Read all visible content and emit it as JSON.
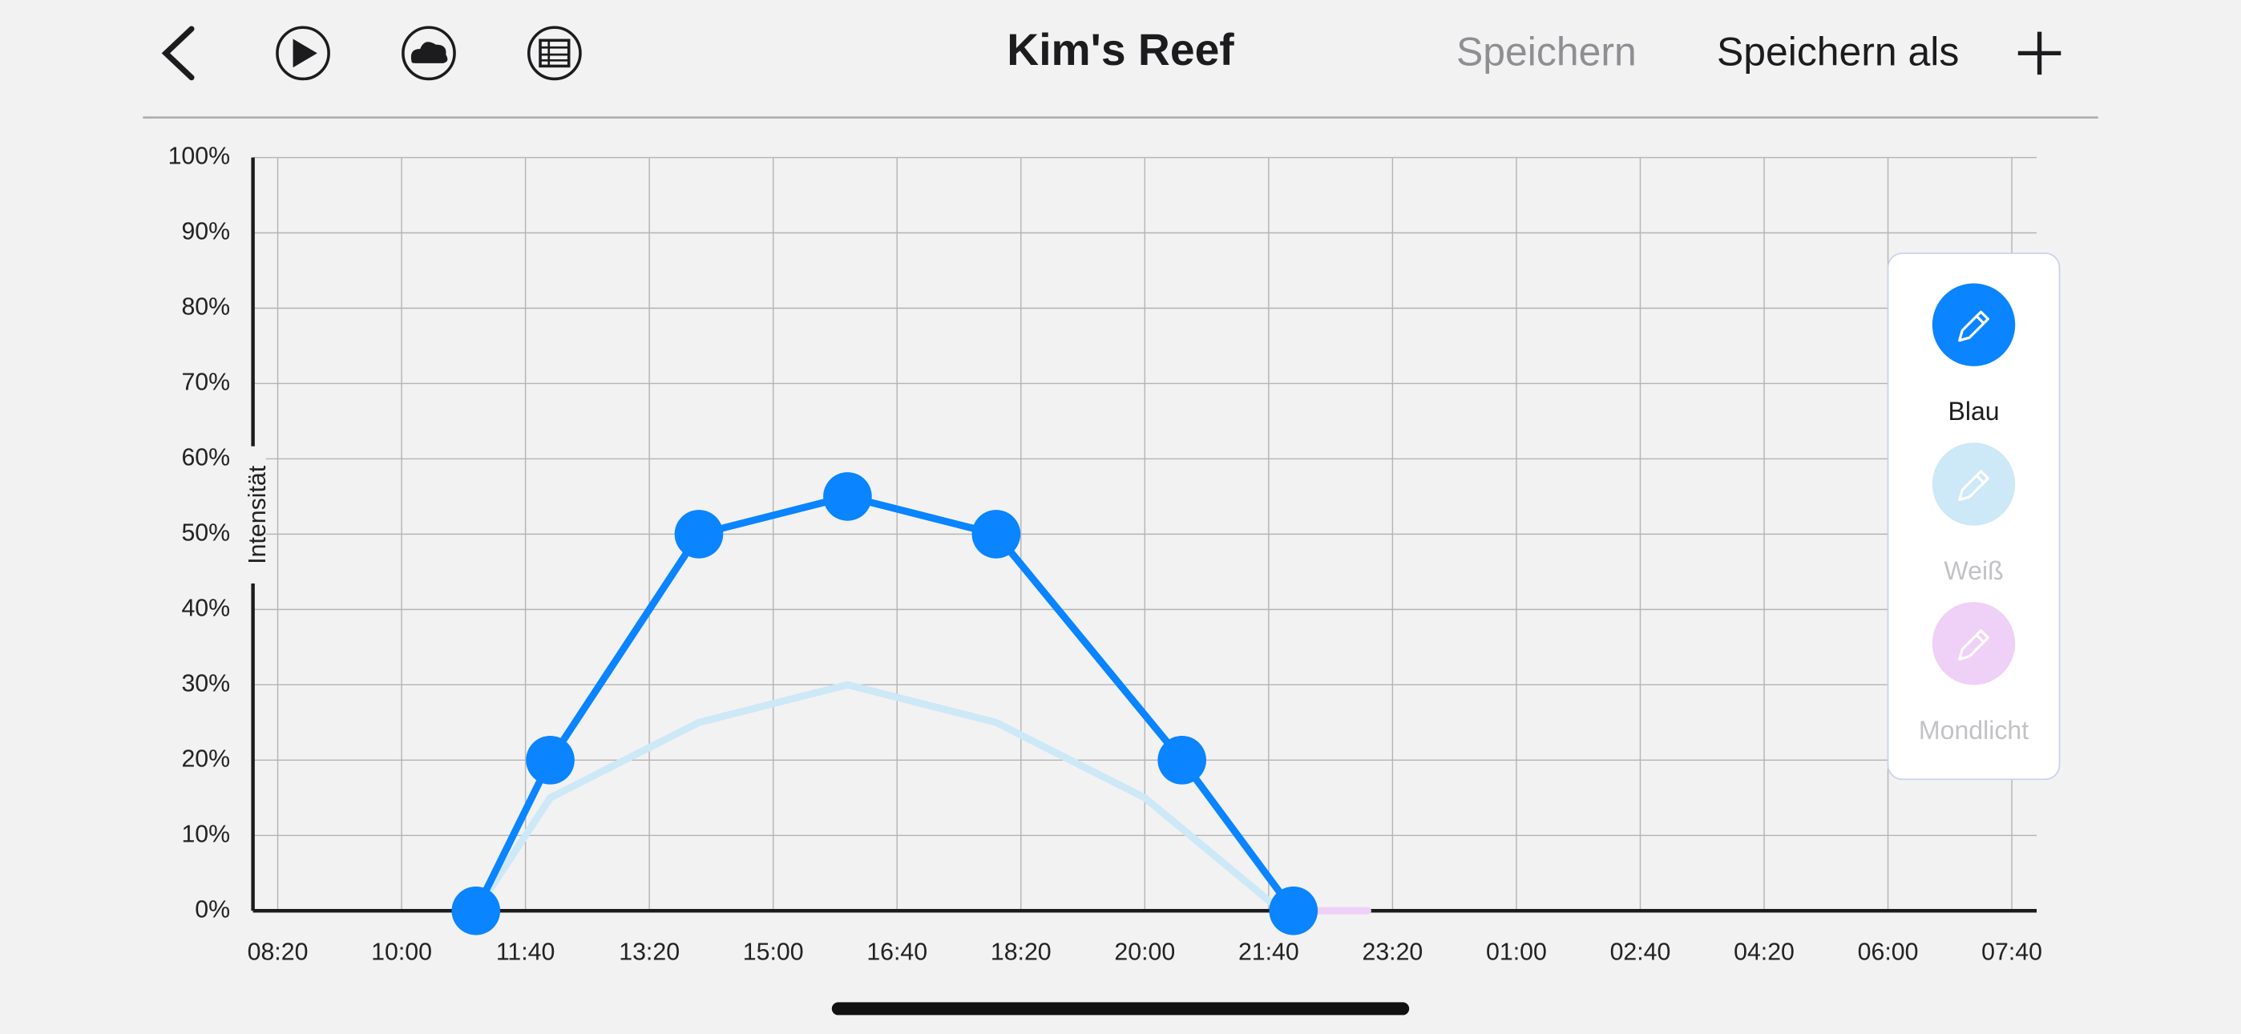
{
  "header": {
    "title": "Kim's Reef",
    "save": "Speichern",
    "save_as": "Speichern als"
  },
  "chart_data": {
    "type": "line",
    "y_label": "Intensität",
    "xlim": [
      480,
      1920
    ],
    "xticks": [
      {
        "value": 500,
        "label": "08:20"
      },
      {
        "value": 600,
        "label": "10:00"
      },
      {
        "value": 700,
        "label": "11:40"
      },
      {
        "value": 800,
        "label": "13:20"
      },
      {
        "value": 900,
        "label": "15:00"
      },
      {
        "value": 1000,
        "label": "16:40"
      },
      {
        "value": 1100,
        "label": "18:20"
      },
      {
        "value": 1200,
        "label": "20:00"
      },
      {
        "value": 1300,
        "label": "21:40"
      },
      {
        "value": 1400,
        "label": "23:20"
      },
      {
        "value": 1500,
        "label": "01:00"
      },
      {
        "value": 1600,
        "label": "02:40"
      },
      {
        "value": 1700,
        "label": "04:20"
      },
      {
        "value": 1800,
        "label": "06:00"
      },
      {
        "value": 1900,
        "label": "07:40"
      }
    ],
    "ylim": [
      0,
      100
    ],
    "yticks": [
      {
        "value": 0,
        "label": "0%"
      },
      {
        "value": 10,
        "label": "10%"
      },
      {
        "value": 20,
        "label": "20%"
      },
      {
        "value": 30,
        "label": "30%"
      },
      {
        "value": 40,
        "label": "40%"
      },
      {
        "value": 50,
        "label": "50%"
      },
      {
        "value": 60,
        "label": "60%"
      },
      {
        "value": 70,
        "label": "70%"
      },
      {
        "value": 80,
        "label": "80%"
      },
      {
        "value": 90,
        "label": "90%"
      },
      {
        "value": 100,
        "label": "100%"
      }
    ],
    "grid": true,
    "series": [
      {
        "name": "Blau",
        "color": "#0a84ff",
        "x": [
          660,
          720,
          840,
          960,
          1080,
          1230,
          1320
        ],
        "values": [
          0,
          20,
          50,
          55,
          50,
          20,
          0
        ]
      },
      {
        "name": "Weiß",
        "color": "#cde8f6",
        "x": [
          660,
          720,
          840,
          960,
          1080,
          1200,
          1310
        ],
        "values": [
          0,
          15,
          25,
          30,
          25,
          15,
          0
        ]
      },
      {
        "name": "Mondlicht",
        "color": "#efd0f6",
        "x": [
          1320,
          1380
        ],
        "values": [
          0,
          0
        ]
      }
    ]
  }
}
